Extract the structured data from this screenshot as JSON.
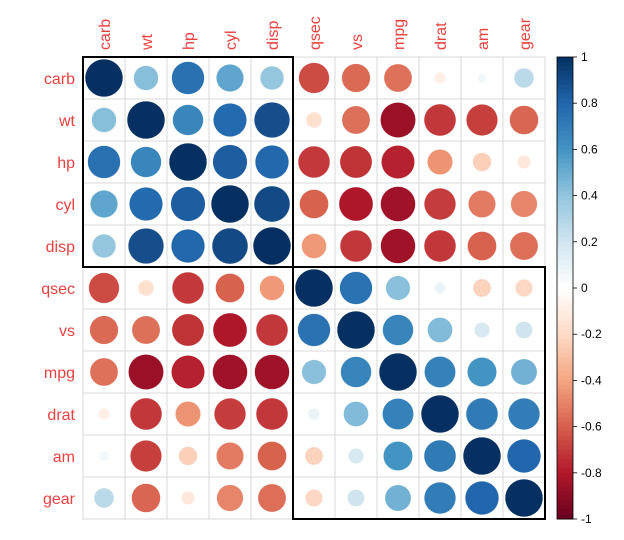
{
  "chart_data": {
    "type": "heatmap",
    "glyph": "circle",
    "variables": [
      "carb",
      "wt",
      "hp",
      "cyl",
      "disp",
      "qsec",
      "vs",
      "mpg",
      "drat",
      "am",
      "gear"
    ],
    "matrix": [
      [
        1,
        0.428,
        0.75,
        0.527,
        0.395,
        -0.656,
        -0.57,
        -0.551,
        -0.091,
        0.058,
        0.274
      ],
      [
        0.428,
        1,
        0.659,
        0.782,
        0.888,
        -0.175,
        -0.555,
        -0.868,
        -0.712,
        -0.692,
        -0.583
      ],
      [
        0.75,
        0.659,
        1,
        0.832,
        0.791,
        -0.708,
        -0.723,
        -0.776,
        -0.449,
        -0.243,
        -0.126
      ],
      [
        0.527,
        0.782,
        0.832,
        1,
        0.902,
        -0.591,
        -0.811,
        -0.852,
        -0.7,
        -0.523,
        -0.493
      ],
      [
        0.395,
        0.888,
        0.791,
        0.902,
        1,
        -0.434,
        -0.71,
        -0.848,
        -0.71,
        -0.591,
        -0.556
      ],
      [
        -0.656,
        -0.175,
        -0.708,
        -0.591,
        -0.434,
        1,
        0.745,
        0.419,
        0.091,
        -0.23,
        -0.213
      ],
      [
        -0.57,
        -0.555,
        -0.723,
        -0.811,
        -0.71,
        0.745,
        1,
        0.664,
        0.44,
        0.168,
        0.206
      ],
      [
        -0.551,
        -0.868,
        -0.776,
        -0.852,
        -0.848,
        0.419,
        0.664,
        1,
        0.681,
        0.6,
        0.48
      ],
      [
        -0.091,
        -0.712,
        -0.449,
        -0.7,
        -0.71,
        0.091,
        0.44,
        0.681,
        1,
        0.713,
        0.7
      ],
      [
        0.058,
        -0.692,
        -0.243,
        -0.523,
        -0.591,
        -0.23,
        0.168,
        0.6,
        0.713,
        1,
        0.794
      ],
      [
        0.274,
        -0.583,
        -0.126,
        -0.493,
        -0.556,
        -0.213,
        0.206,
        0.48,
        0.7,
        0.794,
        1
      ]
    ],
    "clusters": [
      [
        "carb",
        "disp"
      ],
      [
        "qsec",
        "gear"
      ]
    ],
    "colorbar": {
      "range": [
        -1,
        1
      ],
      "ticks": [
        "1",
        "0.8",
        "0.6",
        "0.4",
        "0.2",
        "0",
        "-0.2",
        "-0.4",
        "-0.6",
        "-0.8",
        "-1"
      ],
      "palette": [
        "#67001F",
        "#B2182B",
        "#D6604D",
        "#F4A582",
        "#FDDBC7",
        "#FFFFFF",
        "#D1E5F0",
        "#92C5DE",
        "#4393C3",
        "#2166AC",
        "#053061"
      ]
    },
    "label_color": "#E8423F",
    "grid": true
  }
}
